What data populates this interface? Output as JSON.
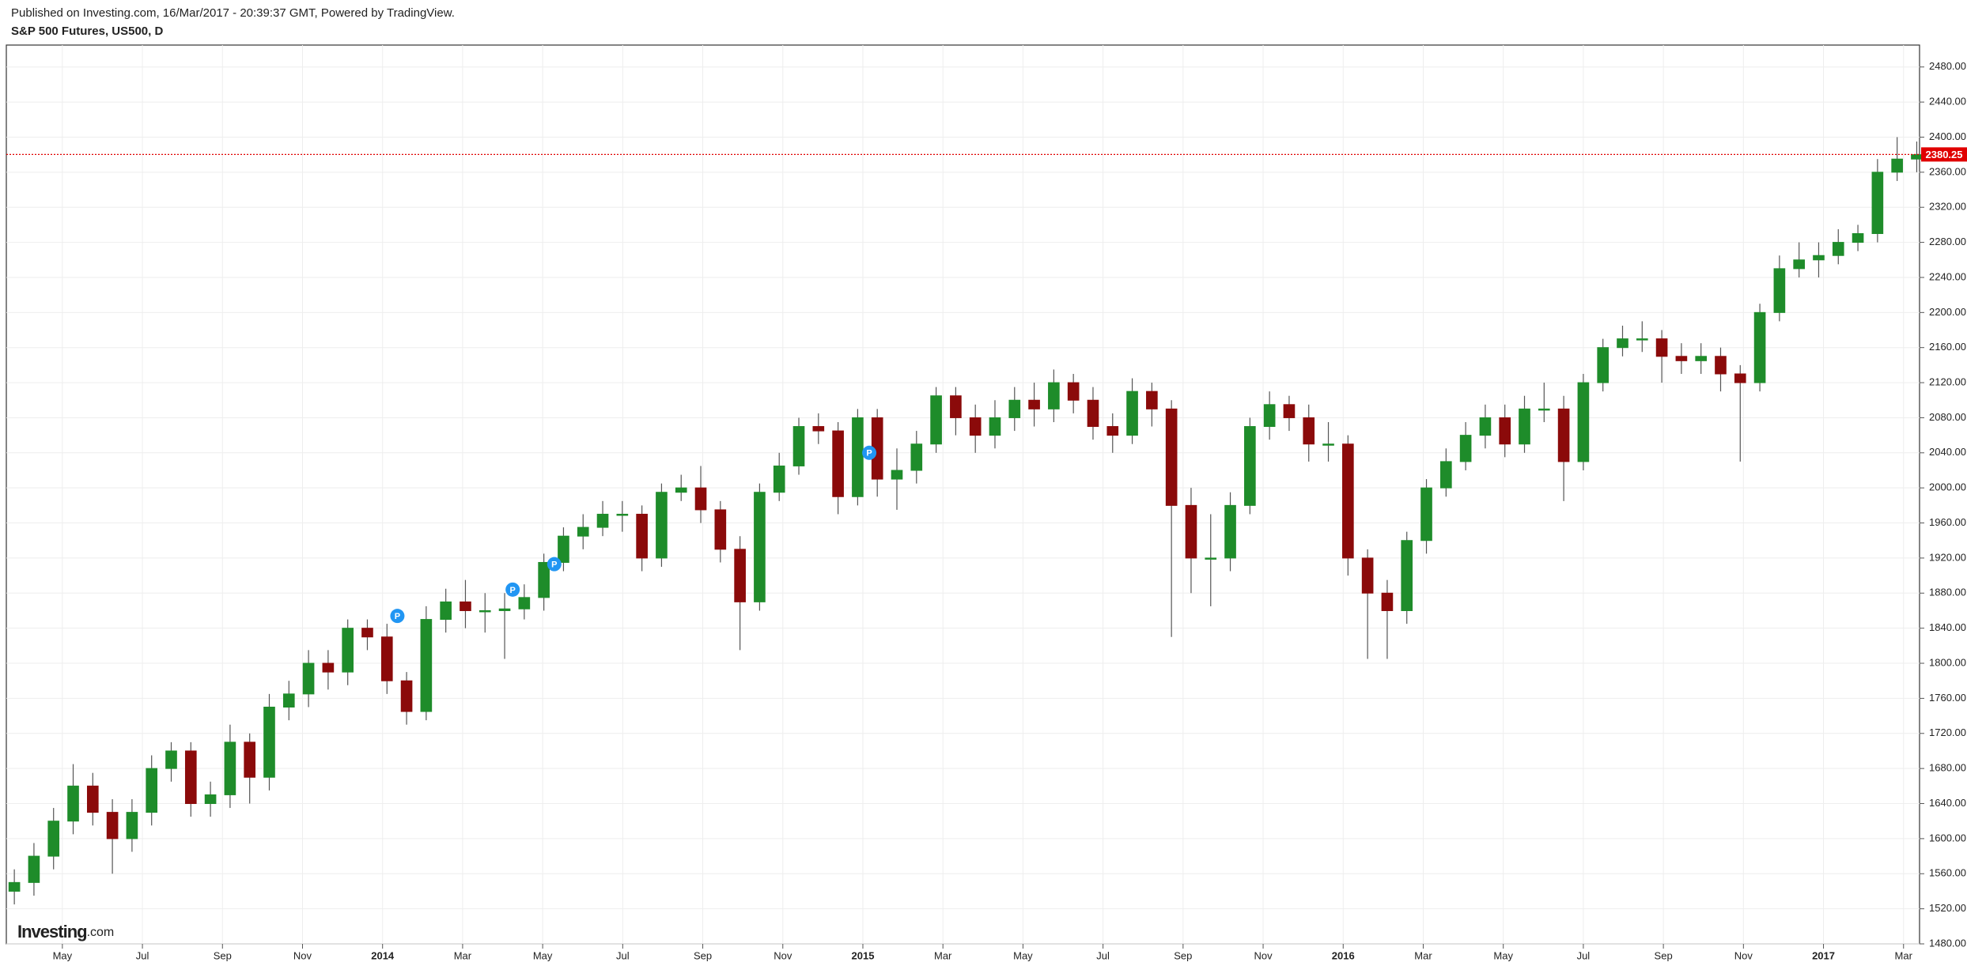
{
  "header": {
    "published": "Published on Investing.com, 16/Mar/2017 - 20:39:37 GMT, Powered by TradingView.",
    "logo_main": "Investing",
    "logo_suffix": ".com"
  },
  "chart_data": {
    "type": "candlestick",
    "title": "S&P 500 Futures, US500, D",
    "x": [
      -0.2,
      0.29,
      0.78,
      1.27,
      1.76,
      2.25,
      2.74,
      3.23,
      3.72,
      4.21,
      4.7,
      5.19,
      5.68,
      6.17,
      6.66,
      7.15,
      7.64,
      8.13,
      8.62,
      9.11,
      9.6,
      10.09,
      10.58,
      11.07,
      11.56,
      12.05,
      12.54,
      13.03,
      13.52,
      14.01,
      14.5,
      14.99,
      15.48,
      15.97,
      16.46,
      16.95,
      17.44,
      17.93,
      18.42,
      18.91,
      19.4,
      19.89,
      20.38,
      20.87,
      21.36,
      21.85,
      22.34,
      22.83,
      23.32,
      23.81,
      24.3,
      24.79,
      25.28,
      25.77,
      26.26,
      26.75,
      27.24,
      27.73,
      28.22,
      28.71,
      29.2,
      29.69,
      30.18,
      30.67,
      31.16,
      31.65,
      32.14,
      32.63,
      33.12,
      33.61,
      34.1,
      34.59,
      35.08,
      35.57,
      36.06,
      36.55,
      37.04,
      37.53,
      38.02,
      38.51,
      39.0,
      39.49,
      39.98,
      40.47,
      40.96,
      41.45,
      41.94,
      42.43,
      42.92,
      43.41,
      43.9,
      44.39,
      44.88,
      45.37,
      45.86,
      46.35,
      46.84,
      47.33
    ],
    "open": [
      1540,
      1550,
      1580,
      1620,
      1660,
      1630,
      1600,
      1630,
      1680,
      1700,
      1640,
      1650,
      1710,
      1670,
      1750,
      1765,
      1800,
      1790,
      1840,
      1830,
      1780,
      1745,
      1850,
      1870,
      1860,
      1860,
      1862,
      1875,
      1915,
      1945,
      1955,
      1970,
      1970,
      1920,
      1995,
      2000,
      1975,
      1930,
      1870,
      1995,
      2025,
      2070,
      2065,
      1990,
      2080,
      2010,
      2020,
      2050,
      2105,
      2080,
      2060,
      2080,
      2100,
      2090,
      2120,
      2100,
      2070,
      2060,
      2110,
      2090,
      1980,
      1920,
      1920,
      1980,
      2070,
      2095,
      2080,
      2050,
      2050,
      1920,
      1880,
      1860,
      1940,
      2000,
      2030,
      2060,
      2080,
      2050,
      2090,
      2090,
      2030,
      2120,
      2160,
      2170,
      2170,
      2150,
      2145,
      2150,
      2130,
      2120,
      2200,
      2250,
      2260,
      2265,
      2280,
      2290,
      2360,
      2375
    ],
    "high": [
      1565,
      1595,
      1635,
      1685,
      1675,
      1645,
      1645,
      1695,
      1710,
      1710,
      1665,
      1730,
      1720,
      1765,
      1780,
      1815,
      1815,
      1850,
      1850,
      1845,
      1790,
      1865,
      1885,
      1895,
      1880,
      1880,
      1890,
      1925,
      1955,
      1970,
      1985,
      1985,
      1980,
      2005,
      2015,
      2025,
      1985,
      1945,
      2005,
      2040,
      2080,
      2085,
      2075,
      2090,
      2090,
      2045,
      2065,
      2115,
      2115,
      2095,
      2100,
      2115,
      2120,
      2135,
      2130,
      2115,
      2085,
      2125,
      2120,
      2100,
      2000,
      1970,
      1995,
      2080,
      2110,
      2105,
      2095,
      2075,
      2060,
      1930,
      1895,
      1950,
      2010,
      2045,
      2075,
      2095,
      2095,
      2105,
      2120,
      2105,
      2130,
      2170,
      2185,
      2190,
      2180,
      2165,
      2165,
      2160,
      2140,
      2210,
      2265,
      2280,
      2280,
      2295,
      2300,
      2375,
      2400,
      2395
    ],
    "low": [
      1525,
      1535,
      1565,
      1605,
      1615,
      1560,
      1585,
      1615,
      1665,
      1625,
      1625,
      1635,
      1640,
      1655,
      1735,
      1750,
      1770,
      1775,
      1815,
      1765,
      1730,
      1735,
      1835,
      1840,
      1835,
      1805,
      1850,
      1860,
      1905,
      1930,
      1945,
      1950,
      1905,
      1910,
      1985,
      1960,
      1915,
      1815,
      1860,
      1985,
      2015,
      2050,
      1970,
      1980,
      1990,
      1975,
      2005,
      2040,
      2060,
      2040,
      2045,
      2065,
      2070,
      2075,
      2085,
      2055,
      2040,
      2050,
      2070,
      1830,
      1880,
      1865,
      1905,
      1970,
      2055,
      2065,
      2030,
      2030,
      1900,
      1805,
      1805,
      1845,
      1925,
      1990,
      2020,
      2045,
      2035,
      2040,
      2075,
      1985,
      2020,
      2110,
      2150,
      2155,
      2120,
      2130,
      2130,
      2110,
      2030,
      2110,
      2190,
      2240,
      2240,
      2255,
      2270,
      2280,
      2350,
      2360
    ],
    "close": [
      1550,
      1580,
      1620,
      1660,
      1630,
      1600,
      1630,
      1680,
      1700,
      1640,
      1650,
      1710,
      1670,
      1750,
      1765,
      1800,
      1790,
      1840,
      1830,
      1780,
      1745,
      1850,
      1870,
      1860,
      1860,
      1862,
      1875,
      1915,
      1945,
      1955,
      1970,
      1970,
      1920,
      1995,
      2000,
      1975,
      1930,
      1870,
      1995,
      2025,
      2070,
      2065,
      1990,
      2080,
      2010,
      2020,
      2050,
      2105,
      2080,
      2060,
      2080,
      2100,
      2090,
      2120,
      2100,
      2070,
      2060,
      2110,
      2090,
      1980,
      1920,
      1920,
      1980,
      2070,
      2095,
      2080,
      2050,
      2050,
      1920,
      1880,
      1860,
      1940,
      2000,
      2030,
      2060,
      2080,
      2050,
      2090,
      2090,
      2030,
      2120,
      2160,
      2170,
      2170,
      2150,
      2145,
      2150,
      2130,
      2120,
      2200,
      2250,
      2260,
      2265,
      2280,
      2290,
      2360,
      2375,
      2380
    ],
    "up_color": "#1e8c2a",
    "down_color": "#8b0a0a",
    "xlim": [
      -0.4,
      47.4
    ],
    "xticks": [
      {
        "value": 1,
        "label": "May"
      },
      {
        "value": 3,
        "label": "Jul"
      },
      {
        "value": 5,
        "label": "Sep"
      },
      {
        "value": 7,
        "label": "Nov"
      },
      {
        "value": 9,
        "label": "2014"
      },
      {
        "value": 11,
        "label": "Mar"
      },
      {
        "value": 13,
        "label": "May"
      },
      {
        "value": 15,
        "label": "Jul"
      },
      {
        "value": 17,
        "label": "Sep"
      },
      {
        "value": 19,
        "label": "Nov"
      },
      {
        "value": 21,
        "label": "2015"
      },
      {
        "value": 23,
        "label": "Mar"
      },
      {
        "value": 25,
        "label": "May"
      },
      {
        "value": 27,
        "label": "Jul"
      },
      {
        "value": 29,
        "label": "Sep"
      },
      {
        "value": 31,
        "label": "Nov"
      },
      {
        "value": 33,
        "label": "2016"
      },
      {
        "value": 35,
        "label": "Mar"
      },
      {
        "value": 37,
        "label": "May"
      },
      {
        "value": 39,
        "label": "Jul"
      },
      {
        "value": 41,
        "label": "Sep"
      },
      {
        "value": 43,
        "label": "Nov"
      },
      {
        "value": 45,
        "label": "2017"
      },
      {
        "value": 47,
        "label": "Mar"
      }
    ],
    "ylim": [
      1480,
      2505
    ],
    "yticks": [
      {
        "value": 1480,
        "label": "1480.00"
      },
      {
        "value": 1520,
        "label": "1520.00"
      },
      {
        "value": 1560,
        "label": "1560.00"
      },
      {
        "value": 1600,
        "label": "1600.00"
      },
      {
        "value": 1640,
        "label": "1640.00"
      },
      {
        "value": 1680,
        "label": "1680.00"
      },
      {
        "value": 1720,
        "label": "1720.00"
      },
      {
        "value": 1760,
        "label": "1760.00"
      },
      {
        "value": 1800,
        "label": "1800.00"
      },
      {
        "value": 1840,
        "label": "1840.00"
      },
      {
        "value": 1880,
        "label": "1880.00"
      },
      {
        "value": 1920,
        "label": "1920.00"
      },
      {
        "value": 1960,
        "label": "1960.00"
      },
      {
        "value": 2000,
        "label": "2000.00"
      },
      {
        "value": 2040,
        "label": "2040.00"
      },
      {
        "value": 2080,
        "label": "2080.00"
      },
      {
        "value": 2120,
        "label": "2120.00"
      },
      {
        "value": 2160,
        "label": "2160.00"
      },
      {
        "value": 2200,
        "label": "2200.00"
      },
      {
        "value": 2240,
        "label": "2240.00"
      },
      {
        "value": 2280,
        "label": "2280.00"
      },
      {
        "value": 2320,
        "label": "2320.00"
      },
      {
        "value": 2360,
        "label": "2360.00"
      },
      {
        "value": 2400,
        "label": "2400.00"
      },
      {
        "value": 2440,
        "label": "2440.00"
      },
      {
        "value": 2480,
        "label": "2480.00"
      }
    ],
    "grid": true,
    "last_price": 2380.25,
    "last_price_color": "#e00000",
    "markers": [
      {
        "label": "P",
        "x": 9.37,
        "y": 1854
      },
      {
        "label": "P",
        "x": 12.25,
        "y": 1884
      },
      {
        "label": "P",
        "x": 13.29,
        "y": 1913
      },
      {
        "label": "P",
        "x": 21.16,
        "y": 2040
      }
    ],
    "marker_color": "#2196f3"
  }
}
